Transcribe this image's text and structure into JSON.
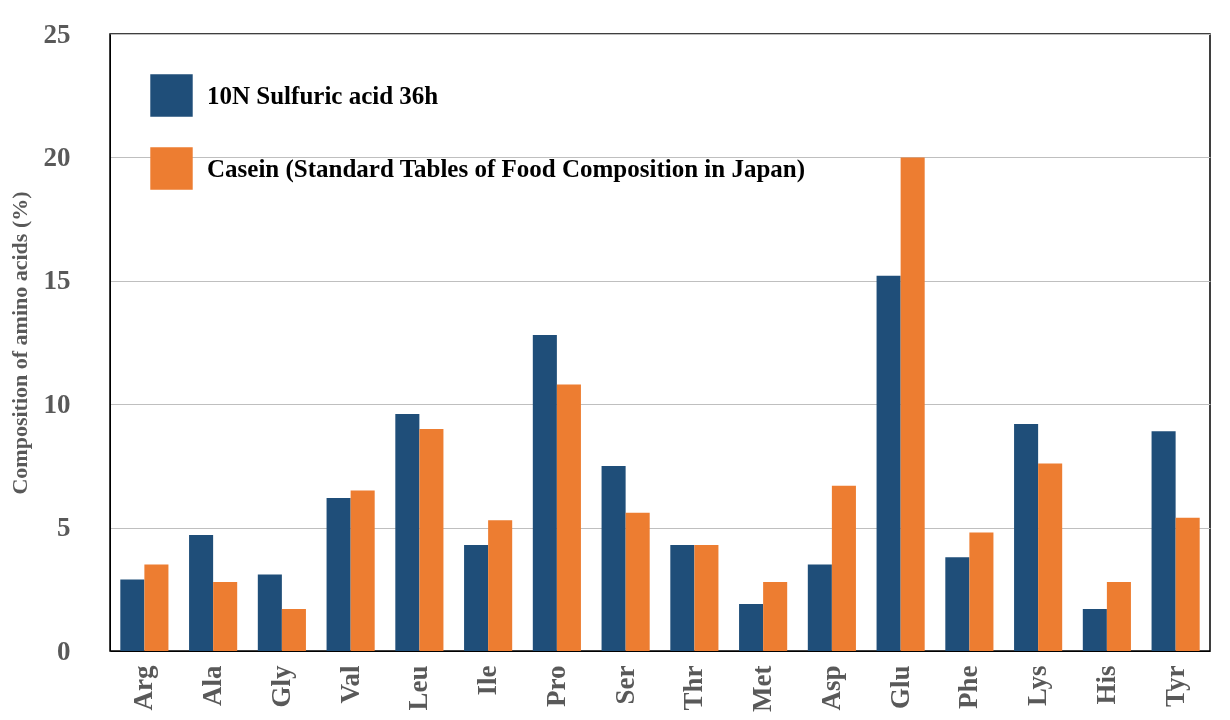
{
  "chart_data": {
    "type": "bar",
    "ylabel": "Composition of amino acids (%)",
    "categories": [
      "Arg",
      "Ala",
      "Gly",
      "Val",
      "Leu",
      "Ile",
      "Pro",
      "Ser",
      "Thr",
      "Met",
      "Asp",
      "Glu",
      "Phe",
      "Lys",
      "His",
      "Tyr"
    ],
    "series": [
      {
        "name": "10N Sulfuric acid 36h",
        "color": "#1f4e79",
        "values": [
          2.9,
          4.7,
          3.1,
          6.2,
          9.6,
          4.3,
          12.8,
          7.5,
          4.3,
          1.9,
          3.5,
          15.2,
          3.8,
          9.2,
          1.7,
          8.9
        ]
      },
      {
        "name": "Casein (Standard Tables of Food Composition in Japan)",
        "color": "#ed7d31",
        "values": [
          3.5,
          2.8,
          1.7,
          6.5,
          9.0,
          5.3,
          10.8,
          5.6,
          4.3,
          2.8,
          6.7,
          20.0,
          4.8,
          7.6,
          2.8,
          5.4
        ]
      }
    ],
    "ylim": [
      0,
      25
    ],
    "yticks": [
      0,
      5,
      10,
      15,
      20,
      25
    ],
    "grid": "y",
    "legend": "top left"
  }
}
